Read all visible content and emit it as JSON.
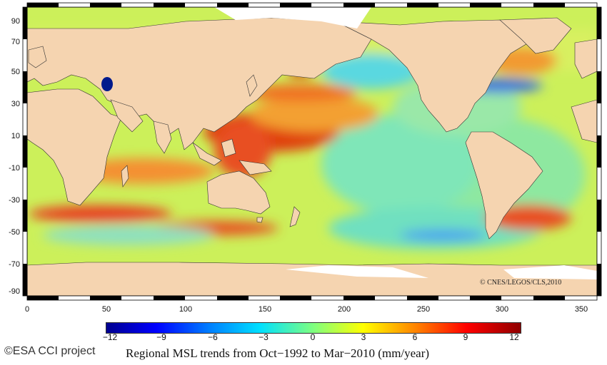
{
  "map": {
    "title": "",
    "x_ticks": [
      "0",
      "50",
      "100",
      "150",
      "200",
      "250",
      "300",
      "350"
    ],
    "y_ticks": [
      "90",
      "70",
      "50",
      "30",
      "10",
      "-10",
      "-30",
      "-50",
      "-70",
      "-90"
    ],
    "copyright": "© CNES/LEGOS/CLS,2010",
    "colors": {
      "land": "#f5d4b0",
      "sea_ice": "#ffffff",
      "trend_low": "#00008f",
      "trend_mid": "#7fff7f",
      "trend_high": "#8f0000"
    }
  },
  "colorbar": {
    "ticks": [
      "−12",
      "−9",
      "−6",
      "−3",
      "0",
      "3",
      "6",
      "9",
      "12"
    ],
    "range": [
      -12,
      12
    ]
  },
  "credit": "©ESA CCI project",
  "caption": "Regional MSL trends from Oct−1992 to Mar−2010 (mm/year)"
}
